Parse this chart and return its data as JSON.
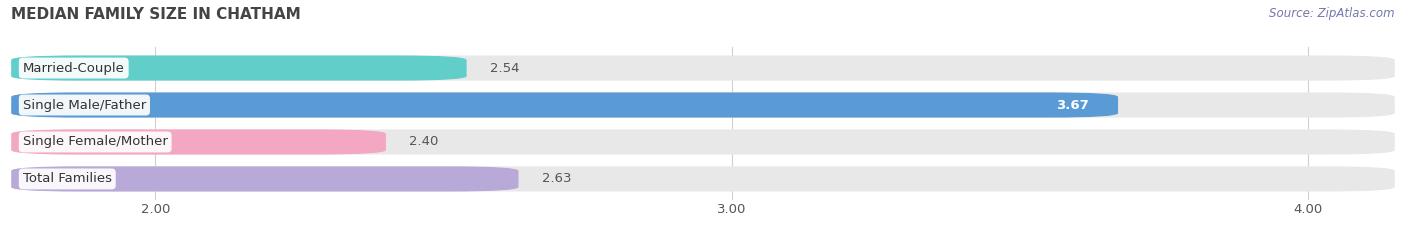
{
  "title": "MEDIAN FAMILY SIZE IN CHATHAM",
  "source": "Source: ZipAtlas.com",
  "categories": [
    "Married-Couple",
    "Single Male/Father",
    "Single Female/Mother",
    "Total Families"
  ],
  "values": [
    2.54,
    3.67,
    2.4,
    2.63
  ],
  "bar_colors": [
    "#62ceca",
    "#5b9bd5",
    "#f4a7c3",
    "#b8a9d9"
  ],
  "label_colors": [
    "#333333",
    "#ffffff",
    "#333333",
    "#333333"
  ],
  "xlim_left": 1.75,
  "xlim_right": 4.15,
  "xticks": [
    2.0,
    3.0,
    4.0
  ],
  "background_color": "#ffffff",
  "bar_bg_color": "#e8e8e8",
  "title_fontsize": 11,
  "label_fontsize": 9.5,
  "value_fontsize": 9.5,
  "source_fontsize": 8.5
}
